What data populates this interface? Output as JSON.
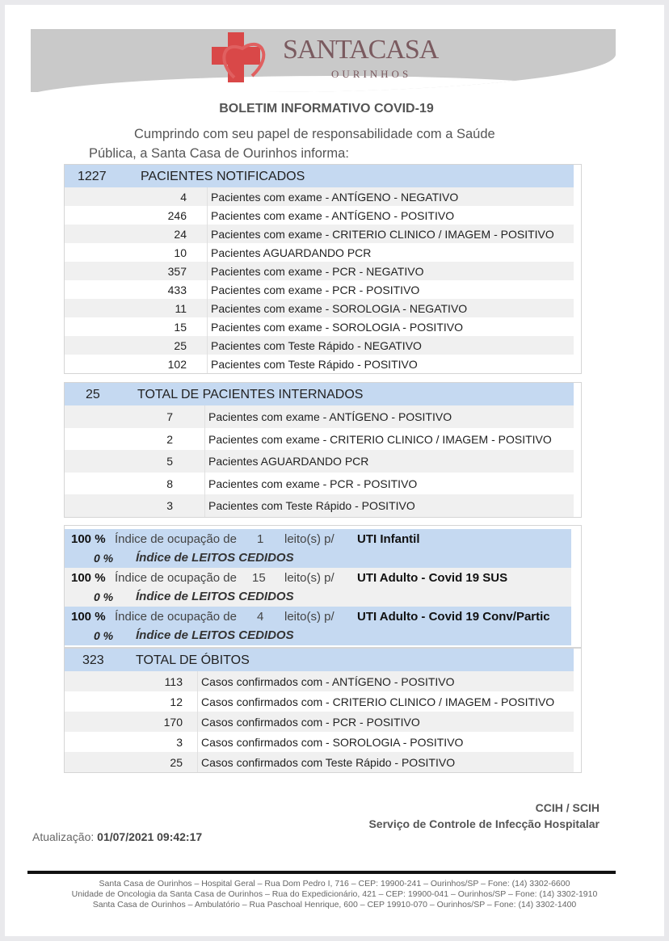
{
  "header": {
    "logo_text": "SANTACASA",
    "logo_sub": "OURINHOS",
    "brand_color": "#d94848",
    "title": "BOLETIM INFORMATIVO COVID-19",
    "intro": "Cumprindo com seu papel de responsabilidade com a Saúde Pública, a Santa Casa de Ourinhos informa:"
  },
  "notificados": {
    "total": "1227",
    "label": "PACIENTES NOTIFICADOS",
    "rows": [
      {
        "n": "4",
        "t": "Pacientes com exame - ANTÍGENO - NEGATIVO"
      },
      {
        "n": "246",
        "t": "Pacientes com exame - ANTÍGENO - POSITIVO"
      },
      {
        "n": "24",
        "t": "Pacientes com exame - CRITERIO CLINICO / IMAGEM - POSITIVO"
      },
      {
        "n": "10",
        "t": "Pacientes AGUARDANDO PCR"
      },
      {
        "n": "357",
        "t": "Pacientes com exame - PCR - NEGATIVO"
      },
      {
        "n": "433",
        "t": "Pacientes com exame - PCR - POSITIVO"
      },
      {
        "n": "11",
        "t": "Pacientes com exame - SOROLOGIA - NEGATIVO"
      },
      {
        "n": "15",
        "t": "Pacientes com exame - SOROLOGIA - POSITIVO"
      },
      {
        "n": "25",
        "t": "Pacientes com Teste Rápido - NEGATIVO"
      },
      {
        "n": "102",
        "t": "Pacientes com Teste Rápido - POSITIVO"
      }
    ]
  },
  "internados": {
    "total": "25",
    "label": "TOTAL DE PACIENTES INTERNADOS",
    "rows": [
      {
        "n": "7",
        "t": "Pacientes com exame - ANTÍGENO - POSITIVO"
      },
      {
        "n": "2",
        "t": "Pacientes com exame - CRITERIO CLINICO / IMAGEM - POSITIVO"
      },
      {
        "n": "5",
        "t": "Pacientes AGUARDANDO PCR"
      },
      {
        "n": "8",
        "t": "Pacientes com exame - PCR - POSITIVO"
      },
      {
        "n": "3",
        "t": "Pacientes com Teste Rápido - POSITIVO"
      }
    ]
  },
  "ocupacao": [
    {
      "pct": "100 %",
      "label": "Índice de ocupação de",
      "leitos": "1",
      "leitos_label": "leito(s) p/",
      "unit": "UTI Infantil",
      "cedidos_pct": "0 %",
      "cedidos_label": "Índice de LEITOS CEDIDOS"
    },
    {
      "pct": "100 %",
      "label": "Índice de ocupação de",
      "leitos": "15",
      "leitos_label": "leito(s) p/",
      "unit": "UTI Adulto - Covid 19 SUS",
      "cedidos_pct": "0 %",
      "cedidos_label": "Índice de LEITOS CEDIDOS"
    },
    {
      "pct": "100 %",
      "label": "Índice de ocupação de",
      "leitos": "4",
      "leitos_label": "leito(s) p/",
      "unit": "UTI Adulto - Covid 19 Conv/Partic",
      "cedidos_pct": "0 %",
      "cedidos_label": "Índice de LEITOS CEDIDOS"
    }
  ],
  "obitos": {
    "total": "323",
    "label": "TOTAL DE ÓBITOS",
    "rows": [
      {
        "n": "113",
        "t": "Casos confirmados com - ANTÍGENO - POSITIVO"
      },
      {
        "n": "12",
        "t": "Casos confirmados com - CRITERIO CLINICO / IMAGEM - POSITIVO"
      },
      {
        "n": "170",
        "t": "Casos confirmados com - PCR - POSITIVO"
      },
      {
        "n": "3",
        "t": "Casos confirmados com - SOROLOGIA - POSITIVO"
      },
      {
        "n": "25",
        "t": "Casos confirmados com Teste Rápido - POSITIVO"
      }
    ]
  },
  "signature": {
    "line1": "CCIH / SCIH",
    "line2": "Serviço de Controle de Infecção Hospitalar"
  },
  "update": {
    "label": "Atualização:",
    "value": "01/07/2021 09:42:17"
  },
  "footer": [
    "Santa Casa de Ourinhos – Hospital Geral – Rua Dom Pedro I, 716 – CEP: 19900-241 – Ourinhos/SP – Fone: (14) 3302-6600",
    "Unidade de Oncologia da Santa Casa de Ourinhos  – Rua do Expedicionário, 421 – CEP: 19900-041 – Ourinhos/SP – Fone: (14) 3302-1910",
    "Santa Casa de  Ourinhos – Ambulatório – Rua Paschoal Henrique, 600 – CEP 19910-070 – Ourinhos/SP – Fone: (14) 3302-1400"
  ]
}
